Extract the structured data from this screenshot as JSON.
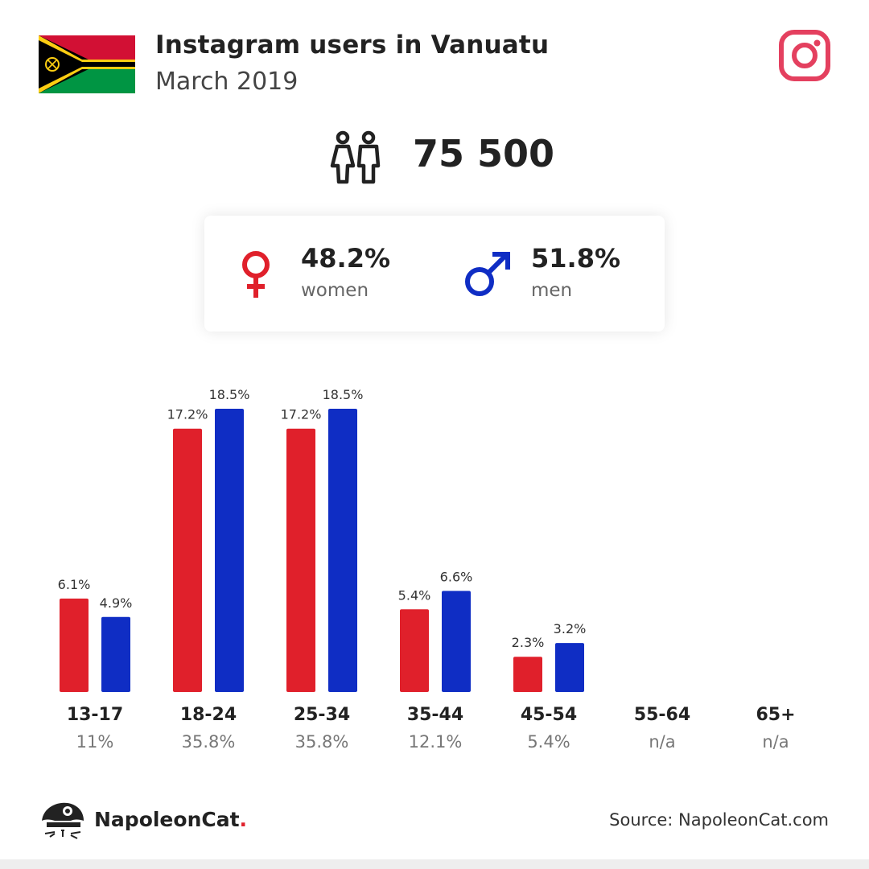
{
  "header": {
    "title": "Instagram users in Vanuatu",
    "subtitle": "March 2019"
  },
  "total": {
    "value": "75 500",
    "icon": "people-icon"
  },
  "gender": {
    "women": {
      "pct": "48.2%",
      "label": "women",
      "icon": "female-symbol-icon",
      "color": "#e0202b"
    },
    "men": {
      "pct": "51.8%",
      "label": "men",
      "icon": "male-symbol-icon",
      "color": "#0f2dc4"
    }
  },
  "colors": {
    "women": "#e0202b",
    "men": "#0f2dc4",
    "instagram": "#e4405f"
  },
  "chart_data": {
    "type": "bar",
    "categories": [
      "13-17",
      "18-24",
      "25-34",
      "35-44",
      "45-54",
      "55-64",
      "65+"
    ],
    "category_totals": [
      "11%",
      "35.8%",
      "35.8%",
      "12.1%",
      "5.4%",
      "n/a",
      "n/a"
    ],
    "series": [
      {
        "values": [
          6.1,
          17.2,
          17.2,
          5.4,
          2.3,
          null,
          null
        ],
        "labels": [
          "6.1%",
          "17.2%",
          "17.2%",
          "5.4%",
          "2.3%",
          "",
          ""
        ],
        "color": "#e0202b"
      },
      {
        "values": [
          4.9,
          18.5,
          18.5,
          6.6,
          3.2,
          null,
          null
        ],
        "labels": [
          "4.9%",
          "18.5%",
          "18.5%",
          "6.6%",
          "3.2%",
          "",
          ""
        ],
        "color": "#0f2dc4"
      }
    ],
    "ylim": [
      0,
      18.5
    ],
    "grid": false,
    "legend": "none"
  },
  "footer": {
    "brand": "NapoleonCat",
    "brand_dot": ".",
    "source": "Source: NapoleonCat.com"
  }
}
